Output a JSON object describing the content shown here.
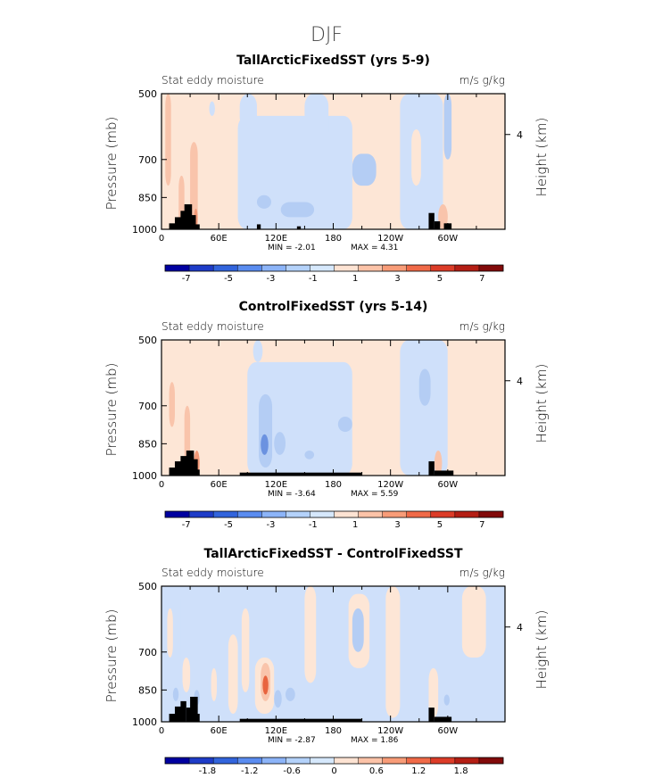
{
  "figure": {
    "title": "DJF"
  },
  "colors": {
    "colorbar": [
      "#0000a0",
      "#1e3cc8",
      "#3264dc",
      "#5a8cf0",
      "#8cb4f8",
      "#b4d2fa",
      "#d6e8fc",
      "#fde3d3",
      "#fcc3a8",
      "#f89c78",
      "#f06a48",
      "#dc3c28",
      "#b41e14",
      "#820a0a"
    ],
    "panel_bg": "#d9e8fb",
    "warm_light": "#fde6d6",
    "warm_mid": "#f9c4ab",
    "warm_strong": "#f39a79",
    "warm_deep": "#e8643f",
    "cool_light": "#cfe0fa",
    "cool_mid": "#b4cdf4",
    "cool_strong": "#8fb2ec",
    "cool_deep": "#6b92e0",
    "topography": "#000000"
  },
  "chart_data": [
    {
      "type": "heatmap",
      "title": "TallArcticFixedSST (yrs 5-9)",
      "left_label": "Stat eddy moisture",
      "right_label": "m/s g/kg",
      "ylabel": "Pressure (mb)",
      "ylabel_right": "Height (km)",
      "xlabel": "",
      "x_ticks": [
        "0",
        "60E",
        "120E",
        "180",
        "120W",
        "60W"
      ],
      "y_ticks": [
        "500",
        "700",
        "850",
        "1000"
      ],
      "y_ticks_right": [
        "4"
      ],
      "xlim": [
        0,
        360
      ],
      "ylim": [
        1000,
        500
      ],
      "min_text": "MIN = -2.01",
      "max_text": "MAX = 4.31",
      "min": -2.01,
      "max": 4.31,
      "colorbar_ticks": [
        "-7",
        "-5",
        "-3",
        "-1",
        "1",
        "3",
        "5",
        "7"
      ],
      "colorbar_levels": [
        -8,
        8
      ],
      "background": "#fde6d6",
      "regions": [
        {
          "lon": [
            0,
            14
          ],
          "p": [
            500,
            1000
          ],
          "color": "#fde6d6"
        },
        {
          "lon": [
            4,
            10
          ],
          "p": [
            500,
            800
          ],
          "color": "#f9c4ab"
        },
        {
          "lon": [
            18,
            24
          ],
          "p": [
            760,
            1000
          ],
          "color": "#f9c4ab"
        },
        {
          "lon": [
            30,
            38
          ],
          "p": [
            640,
            1000
          ],
          "color": "#f9c4ab"
        },
        {
          "lon": [
            34,
            38
          ],
          "p": [
            900,
            1000
          ],
          "color": "#f39a79"
        },
        {
          "lon": [
            50,
            56
          ],
          "p": [
            520,
            560
          ],
          "color": "#cfe0fa"
        },
        {
          "lon": [
            80,
            200
          ],
          "p": [
            560,
            1000
          ],
          "color": "#cfe0fa"
        },
        {
          "lon": [
            82,
            100
          ],
          "p": [
            500,
            600
          ],
          "color": "#cfe0fa"
        },
        {
          "lon": [
            150,
            175
          ],
          "p": [
            500,
            650
          ],
          "color": "#cfe0fa"
        },
        {
          "lon": [
            100,
            115
          ],
          "p": [
            840,
            900
          ],
          "color": "#b4cdf4"
        },
        {
          "lon": [
            125,
            160
          ],
          "p": [
            870,
            940
          ],
          "color": "#b4cdf4"
        },
        {
          "lon": [
            200,
            225
          ],
          "p": [
            680,
            800
          ],
          "color": "#b4cdf4"
        },
        {
          "lon": [
            250,
            295
          ],
          "p": [
            500,
            1000
          ],
          "color": "#cfe0fa"
        },
        {
          "lon": [
            262,
            272
          ],
          "p": [
            600,
            800
          ],
          "color": "#fde6d6"
        },
        {
          "lon": [
            296,
            304
          ],
          "p": [
            500,
            700
          ],
          "color": "#b4cdf4"
        },
        {
          "lon": [
            290,
            300
          ],
          "p": [
            880,
            1000
          ],
          "color": "#f9c4ab"
        },
        {
          "lon": [
            305,
            360
          ],
          "p": [
            500,
            1000
          ],
          "color": "#fde6d6"
        }
      ],
      "topography": [
        {
          "lon": [
            8,
            18
          ],
          "p_top": 970
        },
        {
          "lon": [
            14,
            26
          ],
          "p_top": 940
        },
        {
          "lon": [
            20,
            30
          ],
          "p_top": 910
        },
        {
          "lon": [
            24,
            32
          ],
          "p_top": 880
        },
        {
          "lon": [
            30,
            36
          ],
          "p_top": 930
        },
        {
          "lon": [
            36,
            40
          ],
          "p_top": 975
        },
        {
          "lon": [
            100,
            104
          ],
          "p_top": 975
        },
        {
          "lon": [
            142,
            146
          ],
          "p_top": 985
        },
        {
          "lon": [
            280,
            286
          ],
          "p_top": 920
        },
        {
          "lon": [
            286,
            292
          ],
          "p_top": 960
        },
        {
          "lon": [
            296,
            304
          ],
          "p_top": 970
        }
      ]
    },
    {
      "type": "heatmap",
      "title": "ControlFixedSST (yrs 5-14)",
      "left_label": "Stat eddy moisture",
      "right_label": "m/s g/kg",
      "ylabel": "Pressure (mb)",
      "ylabel_right": "Height (km)",
      "xlabel": "",
      "x_ticks": [
        "0",
        "60E",
        "120E",
        "180",
        "120W",
        "60W"
      ],
      "y_ticks": [
        "500",
        "700",
        "850",
        "1000"
      ],
      "y_ticks_right": [
        "4"
      ],
      "xlim": [
        0,
        360
      ],
      "ylim": [
        1000,
        500
      ],
      "min_text": "MIN = -3.64",
      "max_text": "MAX = 5.59",
      "min": -3.64,
      "max": 5.59,
      "colorbar_ticks": [
        "-7",
        "-5",
        "-3",
        "-1",
        "1",
        "3",
        "5",
        "7"
      ],
      "colorbar_levels": [
        -8,
        8
      ],
      "background": "#fde6d6",
      "regions": [
        {
          "lon": [
            0,
            16
          ],
          "p": [
            500,
            1000
          ],
          "color": "#fde6d6"
        },
        {
          "lon": [
            8,
            14
          ],
          "p": [
            620,
            780
          ],
          "color": "#f9c4ab"
        },
        {
          "lon": [
            24,
            30
          ],
          "p": [
            700,
            1000
          ],
          "color": "#f9c4ab"
        },
        {
          "lon": [
            34,
            40
          ],
          "p": [
            880,
            1000
          ],
          "color": "#f39a79"
        },
        {
          "lon": [
            90,
            200
          ],
          "p": [
            560,
            1000
          ],
          "color": "#cfe0fa"
        },
        {
          "lon": [
            96,
            106
          ],
          "p": [
            500,
            560
          ],
          "color": "#cfe0fa"
        },
        {
          "lon": [
            102,
            116
          ],
          "p": [
            660,
            960
          ],
          "color": "#b4cdf4"
        },
        {
          "lon": [
            104,
            112
          ],
          "p": [
            810,
            900
          ],
          "color": "#6b92e0"
        },
        {
          "lon": [
            118,
            130
          ],
          "p": [
            800,
            900
          ],
          "color": "#b4cdf4"
        },
        {
          "lon": [
            150,
            160
          ],
          "p": [
            880,
            920
          ],
          "color": "#b4cdf4"
        },
        {
          "lon": [
            185,
            200
          ],
          "p": [
            740,
            800
          ],
          "color": "#b4cdf4"
        },
        {
          "lon": [
            200,
            250
          ],
          "p": [
            500,
            1000
          ],
          "color": "#fde6d6"
        },
        {
          "lon": [
            250,
            300
          ],
          "p": [
            500,
            1000
          ],
          "color": "#cfe0fa"
        },
        {
          "lon": [
            270,
            282
          ],
          "p": [
            580,
            700
          ],
          "color": "#b4cdf4"
        },
        {
          "lon": [
            286,
            294
          ],
          "p": [
            880,
            1000
          ],
          "color": "#f9c4ab"
        },
        {
          "lon": [
            300,
            360
          ],
          "p": [
            500,
            1000
          ],
          "color": "#fde6d6"
        }
      ],
      "topography": [
        {
          "lon": [
            8,
            16
          ],
          "p_top": 960
        },
        {
          "lon": [
            14,
            24
          ],
          "p_top": 930
        },
        {
          "lon": [
            20,
            28
          ],
          "p_top": 905
        },
        {
          "lon": [
            26,
            34
          ],
          "p_top": 880
        },
        {
          "lon": [
            32,
            38
          ],
          "p_top": 920
        },
        {
          "lon": [
            36,
            40
          ],
          "p_top": 970
        },
        {
          "lon": [
            82,
            210
          ],
          "p_top": 985
        },
        {
          "lon": [
            280,
            286
          ],
          "p_top": 930
        },
        {
          "lon": [
            286,
            306
          ],
          "p_top": 975
        }
      ]
    },
    {
      "type": "heatmap",
      "title": "TallArcticFixedSST - ControlFixedSST",
      "left_label": "Stat eddy moisture",
      "right_label": "m/s g/kg",
      "ylabel": "Pressure (mb)",
      "ylabel_right": "Height (km)",
      "xlabel": "",
      "x_ticks": [
        "0",
        "60E",
        "120E",
        "180",
        "120W",
        "60W"
      ],
      "y_ticks": [
        "500",
        "700",
        "850",
        "1000"
      ],
      "y_ticks_right": [
        "4"
      ],
      "xlim": [
        0,
        360
      ],
      "ylim": [
        1000,
        500
      ],
      "min_text": "MIN = -2.87",
      "max_text": "MAX = 1.86",
      "min": -2.87,
      "max": 1.86,
      "colorbar_ticks": [
        "-1.8",
        "-1.2",
        "-0.6",
        "0",
        "0.6",
        "1.2",
        "1.8"
      ],
      "colorbar_levels": [
        -2.4,
        2.4
      ],
      "background": "#cfe0fa",
      "regions": [
        {
          "lon": [
            0,
            20
          ],
          "p": [
            500,
            1000
          ],
          "color": "#cfe0fa"
        },
        {
          "lon": [
            6,
            12
          ],
          "p": [
            560,
            720
          ],
          "color": "#fde6d6"
        },
        {
          "lon": [
            22,
            30
          ],
          "p": [
            720,
            860
          ],
          "color": "#fde6d6"
        },
        {
          "lon": [
            12,
            18
          ],
          "p": [
            840,
            900
          ],
          "color": "#b4cdf4"
        },
        {
          "lon": [
            34,
            40
          ],
          "p": [
            850,
            920
          ],
          "color": "#b4cdf4"
        },
        {
          "lon": [
            52,
            58
          ],
          "p": [
            760,
            900
          ],
          "color": "#fde6d6"
        },
        {
          "lon": [
            70,
            80
          ],
          "p": [
            640,
            960
          ],
          "color": "#fde6d6"
        },
        {
          "lon": [
            84,
            92
          ],
          "p": [
            560,
            860
          ],
          "color": "#fde6d6"
        },
        {
          "lon": [
            98,
            118
          ],
          "p": [
            720,
            960
          ],
          "color": "#fde6d6"
        },
        {
          "lon": [
            104,
            114
          ],
          "p": [
            740,
            900
          ],
          "color": "#f9c4ab"
        },
        {
          "lon": [
            106,
            112
          ],
          "p": [
            790,
            870
          ],
          "color": "#e8643f"
        },
        {
          "lon": [
            118,
            126
          ],
          "p": [
            850,
            930
          ],
          "color": "#b4cdf4"
        },
        {
          "lon": [
            130,
            140
          ],
          "p": [
            840,
            900
          ],
          "color": "#b4cdf4"
        },
        {
          "lon": [
            150,
            162
          ],
          "p": [
            500,
            820
          ],
          "color": "#fde6d6"
        },
        {
          "lon": [
            196,
            218
          ],
          "p": [
            520,
            760
          ],
          "color": "#fde6d6"
        },
        {
          "lon": [
            200,
            212
          ],
          "p": [
            560,
            700
          ],
          "color": "#b4cdf4"
        },
        {
          "lon": [
            235,
            250
          ],
          "p": [
            500,
            980
          ],
          "color": "#fde6d6"
        },
        {
          "lon": [
            280,
            290
          ],
          "p": [
            760,
            980
          ],
          "color": "#fde6d6"
        },
        {
          "lon": [
            296,
            302
          ],
          "p": [
            870,
            920
          ],
          "color": "#b4cdf4"
        },
        {
          "lon": [
            315,
            340
          ],
          "p": [
            500,
            720
          ],
          "color": "#fde6d6"
        }
      ],
      "topography": [
        {
          "lon": [
            8,
            16
          ],
          "p_top": 960
        },
        {
          "lon": [
            14,
            22
          ],
          "p_top": 925
        },
        {
          "lon": [
            20,
            26
          ],
          "p_top": 900
        },
        {
          "lon": [
            26,
            32
          ],
          "p_top": 930
        },
        {
          "lon": [
            30,
            38
          ],
          "p_top": 880
        },
        {
          "lon": [
            36,
            40
          ],
          "p_top": 960
        },
        {
          "lon": [
            82,
            210
          ],
          "p_top": 985
        },
        {
          "lon": [
            280,
            286
          ],
          "p_top": 930
        },
        {
          "lon": [
            286,
            304
          ],
          "p_top": 975
        }
      ]
    }
  ]
}
